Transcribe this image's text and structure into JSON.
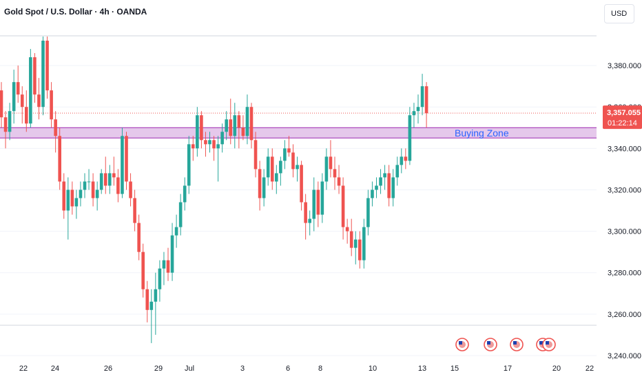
{
  "header": {
    "title": "Gold Spot / U.S. Dollar · 4h · OANDA",
    "currency": "USD"
  },
  "price_tag": {
    "price": "3,357.055",
    "countdown": "01:22:14"
  },
  "colors": {
    "up": "#26a69a",
    "down": "#ef5350",
    "zone_fill": "#e1bee7",
    "zone_border": "#9c27b0",
    "zone_label": "#2962ff",
    "price_line": "#ef5350",
    "grid": "#f0f3fa"
  },
  "chart_data": {
    "type": "candlestick",
    "y_axis": {
      "min": 3230,
      "max": 3395,
      "ticks": [
        "3,380.000",
        "3,360.000",
        "3,340.000",
        "3,320.000",
        "3,300.000",
        "3,280.000",
        "3,260.000",
        "3,240.000"
      ]
    },
    "x_axis": {
      "labels": [
        "22",
        "24",
        "26",
        "29",
        "Jul",
        "3",
        "6",
        "8",
        "10",
        "13",
        "15",
        "17",
        "20",
        "22"
      ]
    },
    "current_price": 3357.055,
    "zone": {
      "label": "Buying Zone",
      "from": 3345,
      "to": 3350
    },
    "events": {
      "icon": "us-flag-icon",
      "count": 5
    },
    "ohlc": [
      [
        3368,
        3372,
        3350,
        3355
      ],
      [
        3355,
        3358,
        3340,
        3348
      ],
      [
        3348,
        3362,
        3344,
        3358
      ],
      [
        3358,
        3378,
        3352,
        3372
      ],
      [
        3372,
        3380,
        3362,
        3366
      ],
      [
        3366,
        3370,
        3352,
        3360
      ],
      [
        3360,
        3368,
        3348,
        3352
      ],
      [
        3352,
        3388,
        3350,
        3384
      ],
      [
        3384,
        3386,
        3362,
        3366
      ],
      [
        3366,
        3374,
        3354,
        3360
      ],
      [
        3360,
        3394,
        3356,
        3392
      ],
      [
        3392,
        3394,
        3364,
        3368
      ],
      [
        3368,
        3372,
        3350,
        3354
      ],
      [
        3354,
        3358,
        3338,
        3346
      ],
      [
        3346,
        3350,
        3320,
        3324
      ],
      [
        3324,
        3328,
        3306,
        3310
      ],
      [
        3310,
        3326,
        3296,
        3320
      ],
      [
        3320,
        3324,
        3308,
        3312
      ],
      [
        3312,
        3320,
        3306,
        3316
      ],
      [
        3316,
        3324,
        3312,
        3320
      ],
      [
        3320,
        3328,
        3316,
        3324
      ],
      [
        3324,
        3330,
        3320,
        3324
      ],
      [
        3324,
        3328,
        3312,
        3316
      ],
      [
        3316,
        3324,
        3310,
        3320
      ],
      [
        3320,
        3330,
        3318,
        3328
      ],
      [
        3328,
        3336,
        3318,
        3322
      ],
      [
        3322,
        3332,
        3318,
        3328
      ],
      [
        3328,
        3336,
        3322,
        3326
      ],
      [
        3326,
        3330,
        3314,
        3318
      ],
      [
        3318,
        3350,
        3316,
        3346
      ],
      [
        3346,
        3348,
        3320,
        3324
      ],
      [
        3324,
        3328,
        3312,
        3316
      ],
      [
        3316,
        3320,
        3300,
        3304
      ],
      [
        3304,
        3308,
        3286,
        3290
      ],
      [
        3290,
        3294,
        3268,
        3272
      ],
      [
        3272,
        3276,
        3256,
        3262
      ],
      [
        3262,
        3272,
        3246,
        3266
      ],
      [
        3266,
        3280,
        3250,
        3272
      ],
      [
        3272,
        3286,
        3266,
        3282
      ],
      [
        3282,
        3290,
        3274,
        3286
      ],
      [
        3286,
        3292,
        3276,
        3280
      ],
      [
        3280,
        3304,
        3276,
        3298
      ],
      [
        3298,
        3308,
        3292,
        3302
      ],
      [
        3302,
        3318,
        3298,
        3314
      ],
      [
        3314,
        3326,
        3310,
        3322
      ],
      [
        3322,
        3346,
        3318,
        3342
      ],
      [
        3342,
        3346,
        3334,
        3340
      ],
      [
        3340,
        3360,
        3336,
        3356
      ],
      [
        3356,
        3358,
        3340,
        3344
      ],
      [
        3344,
        3348,
        3336,
        3342
      ],
      [
        3342,
        3348,
        3338,
        3344
      ],
      [
        3344,
        3346,
        3334,
        3340
      ],
      [
        3340,
        3346,
        3324,
        3342
      ],
      [
        3342,
        3352,
        3338,
        3348
      ],
      [
        3348,
        3358,
        3344,
        3354
      ],
      [
        3354,
        3364,
        3342,
        3346
      ],
      [
        3346,
        3362,
        3340,
        3356
      ],
      [
        3356,
        3358,
        3340,
        3350
      ],
      [
        3350,
        3356,
        3344,
        3346
      ],
      [
        3346,
        3366,
        3342,
        3360
      ],
      [
        3360,
        3362,
        3340,
        3344
      ],
      [
        3344,
        3348,
        3326,
        3330
      ],
      [
        3330,
        3334,
        3310,
        3316
      ],
      [
        3316,
        3330,
        3312,
        3326
      ],
      [
        3326,
        3340,
        3322,
        3336
      ],
      [
        3336,
        3340,
        3320,
        3324
      ],
      [
        3324,
        3332,
        3318,
        3328
      ],
      [
        3328,
        3336,
        3322,
        3334
      ],
      [
        3334,
        3344,
        3330,
        3340
      ],
      [
        3340,
        3346,
        3336,
        3338
      ],
      [
        3338,
        3342,
        3326,
        3330
      ],
      [
        3330,
        3336,
        3324,
        3332
      ],
      [
        3332,
        3334,
        3310,
        3314
      ],
      [
        3314,
        3318,
        3296,
        3304
      ],
      [
        3304,
        3310,
        3298,
        3306
      ],
      [
        3306,
        3326,
        3300,
        3320
      ],
      [
        3320,
        3324,
        3302,
        3308
      ],
      [
        3308,
        3328,
        3304,
        3324
      ],
      [
        3324,
        3340,
        3320,
        3336
      ],
      [
        3336,
        3344,
        3326,
        3330
      ],
      [
        3330,
        3336,
        3320,
        3326
      ],
      [
        3326,
        3332,
        3318,
        3322
      ],
      [
        3322,
        3326,
        3296,
        3302
      ],
      [
        3302,
        3306,
        3294,
        3300
      ],
      [
        3300,
        3306,
        3288,
        3292
      ],
      [
        3292,
        3300,
        3284,
        3296
      ],
      [
        3296,
        3300,
        3282,
        3286
      ],
      [
        3286,
        3306,
        3282,
        3302
      ],
      [
        3302,
        3320,
        3298,
        3316
      ],
      [
        3316,
        3324,
        3312,
        3320
      ],
      [
        3320,
        3326,
        3316,
        3322
      ],
      [
        3322,
        3330,
        3318,
        3326
      ],
      [
        3326,
        3332,
        3320,
        3328
      ],
      [
        3328,
        3332,
        3312,
        3316
      ],
      [
        3316,
        3330,
        3312,
        3326
      ],
      [
        3326,
        3336,
        3322,
        3332
      ],
      [
        3332,
        3340,
        3328,
        3336
      ],
      [
        3336,
        3340,
        3330,
        3334
      ],
      [
        3334,
        3360,
        3332,
        3356
      ],
      [
        3356,
        3362,
        3350,
        3358
      ],
      [
        3358,
        3366,
        3352,
        3360
      ],
      [
        3360,
        3376,
        3356,
        3370
      ],
      [
        3370,
        3372,
        3350,
        3357
      ]
    ]
  }
}
